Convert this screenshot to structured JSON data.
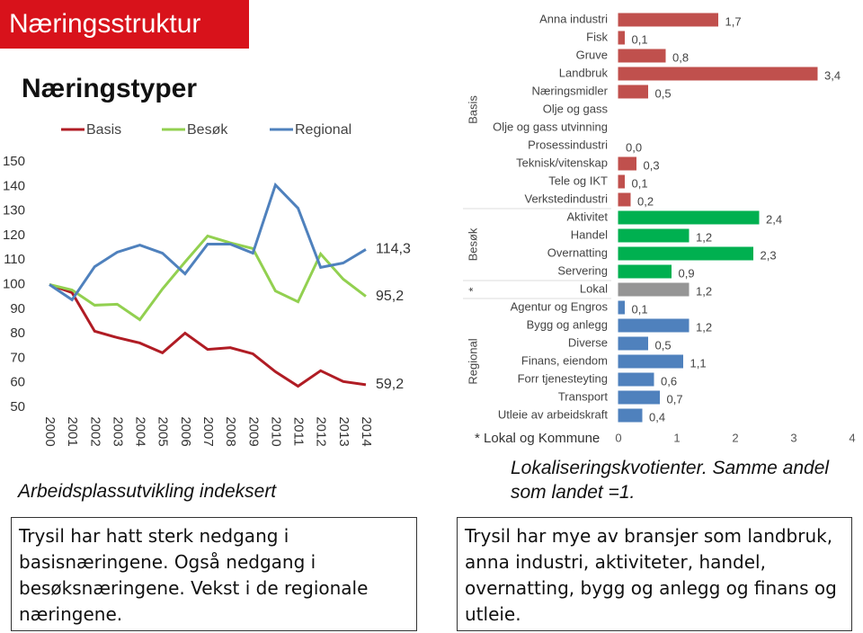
{
  "slide": {
    "title": "Næringsstruktur",
    "subtitle": "Næringstyper",
    "left_text": "Trysil har hatt sterk nedgang i basisnæringene. Også nedgang i besøksnæringene. Vekst i de regionale næringene.",
    "right_text": "Trysil har mye av bransjer som landbruk, anna industri, aktiviteter, handel, overnatting, bygg og anlegg og finans og utleie."
  },
  "chart_data": [
    {
      "type": "line",
      "caption": "Arbeidsplassutvikling indeksert",
      "categories": [
        "2000",
        "2001",
        "2002",
        "2003",
        "2004",
        "2005",
        "2006",
        "2007",
        "2008",
        "2009",
        "2010",
        "2011",
        "2012",
        "2013",
        "2014"
      ],
      "ylim": [
        50,
        150
      ],
      "yticks": [
        50,
        60,
        70,
        80,
        90,
        100,
        110,
        120,
        130,
        140,
        150
      ],
      "series": [
        {
          "name": "Basis",
          "color": "#b01c24",
          "values": [
            100,
            96.7,
            81,
            78.4,
            76.2,
            72.2,
            80.2,
            73.6,
            74.3,
            71.8,
            64.5,
            58.6,
            64.9,
            60.5,
            59.2
          ],
          "value_labels": [
            null,
            null,
            null,
            null,
            null,
            null,
            null,
            null,
            null,
            null,
            null,
            null,
            null,
            null,
            "59,2"
          ]
        },
        {
          "name": "Besøk",
          "color": "#92d050",
          "values": [
            100,
            97.8,
            91.6,
            92,
            85.7,
            98.2,
            109.2,
            119.8,
            117,
            114.7,
            97.4,
            93,
            112.5,
            102.2,
            95.2
          ],
          "value_labels": [
            null,
            null,
            null,
            null,
            null,
            null,
            null,
            null,
            null,
            null,
            null,
            null,
            null,
            null,
            "95,2"
          ]
        },
        {
          "name": "Regional",
          "color": "#4f81bd",
          "values": [
            100,
            93.8,
            107.3,
            113.2,
            116.1,
            112.8,
            104.4,
            116.5,
            116.5,
            112.8,
            140.6,
            131.1,
            107,
            108.8,
            114.3
          ],
          "value_labels": [
            null,
            null,
            null,
            null,
            null,
            null,
            null,
            null,
            null,
            null,
            null,
            null,
            null,
            null,
            "114,3"
          ]
        }
      ]
    },
    {
      "type": "hbar",
      "caption": "Lokaliseringskvotienter. Samme andel som landet =1.",
      "note": "* Lokal og Kommune",
      "xlim": [
        0,
        4
      ],
      "xticks": [
        0,
        1,
        2,
        3,
        4
      ],
      "groups": [
        {
          "name": "Basis",
          "color": "#c0504d",
          "categories": [
            "Anna industri",
            "Fisk",
            "Gruve",
            "Landbruk",
            "Næringsmidler",
            "Olje og gass",
            "Olje og gass utvinning",
            "Prosessindustri",
            "Teknisk/vitenskap",
            "Tele og IKT",
            "Verkstedindustri"
          ],
          "values": [
            1.7,
            0.1,
            0.8,
            3.4,
            0.5,
            null,
            null,
            0,
            0.3,
            0.1,
            0.2
          ],
          "value_labels": [
            "1,7",
            "0,1",
            "0,8",
            "3,4",
            "0,5",
            null,
            null,
            "0,0",
            "0,3",
            "0,1",
            "0,2"
          ]
        },
        {
          "name": "Besøk",
          "color": "#00b050",
          "categories": [
            "Aktivitet",
            "Handel",
            "Overnatting",
            "Servering"
          ],
          "values": [
            2.4,
            1.2,
            2.3,
            0.9
          ],
          "value_labels": [
            "2,4",
            "1,2",
            "2,3",
            "0,9"
          ]
        },
        {
          "name": "*",
          "color": "#959595",
          "categories": [
            "Lokal"
          ],
          "values": [
            1.2
          ],
          "value_labels": [
            "1,2"
          ]
        },
        {
          "name": "Regional",
          "color": "#4f81bd",
          "categories": [
            "Agentur og Engros",
            "Bygg og anlegg",
            "Diverse",
            "Finans, eiendom",
            "Forr tjenesteyting",
            "Transport",
            "Utleie av arbeidskraft"
          ],
          "values": [
            0.1,
            1.2,
            0.5,
            1.1,
            0.6,
            0.7,
            0.4
          ],
          "value_labels": [
            "0,1",
            "1,2",
            "0,5",
            "1,1",
            "0,6",
            "0,7",
            "0,4"
          ]
        }
      ]
    }
  ]
}
